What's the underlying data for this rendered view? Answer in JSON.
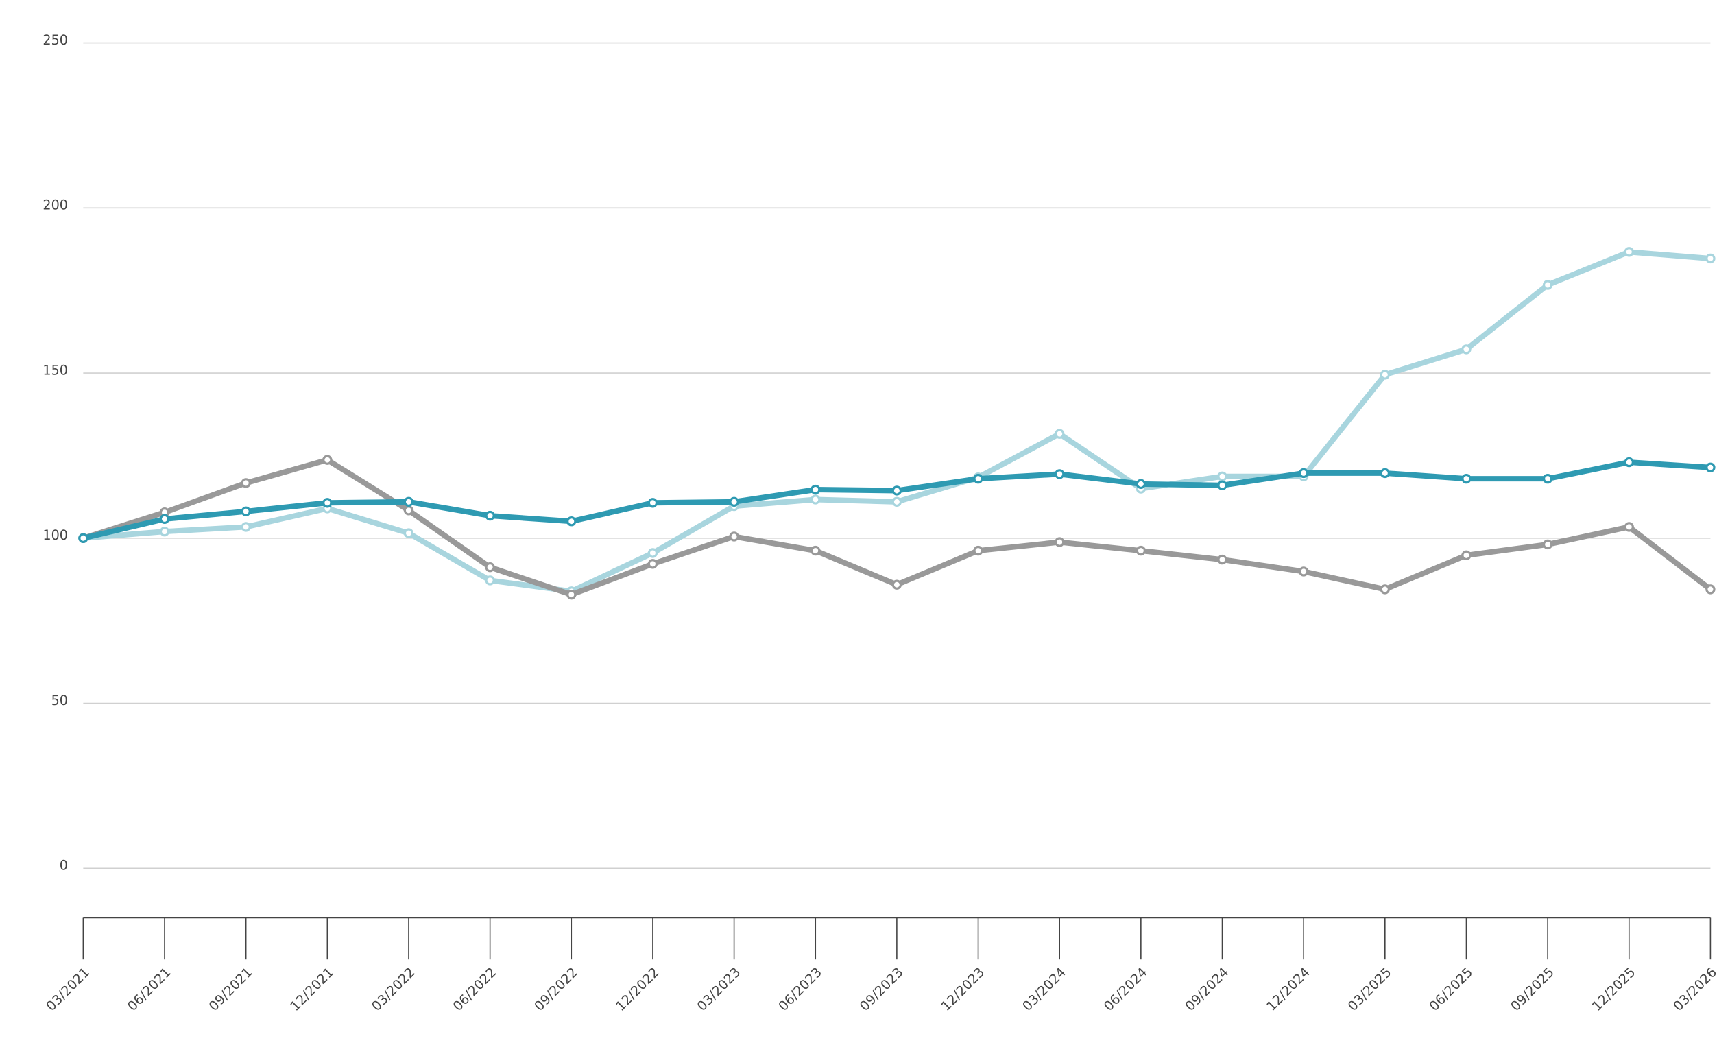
{
  "chart_data": {
    "type": "line",
    "categories": [
      "03/2021",
      "06/2021",
      "09/2021",
      "12/2021",
      "03/2022",
      "06/2022",
      "09/2022",
      "12/2022",
      "03/2023",
      "06/2023",
      "09/2023",
      "12/2023",
      "03/2024",
      "06/2024",
      "09/2024",
      "12/2024",
      "03/2025",
      "06/2025",
      "09/2025",
      "12/2025",
      "03/2026"
    ],
    "series": [
      {
        "color": "#a8d5de",
        "values": [
          100,
          102,
          103.4,
          109,
          101.5,
          87.2,
          83.9,
          95.5,
          109.7,
          111.7,
          111,
          118.4,
          131.6,
          115,
          118.7,
          118.7,
          149.5,
          157.2,
          176.7,
          186.7,
          184.7
        ]
      },
      {
        "color": "#999999",
        "values": [
          100,
          107.8,
          116.7,
          123.7,
          108.4,
          91.2,
          82.9,
          92.2,
          100.5,
          96.2,
          85.9,
          96.2,
          98.8,
          96.2,
          93.5,
          89.9,
          84.5,
          94.8,
          98.1,
          103.4,
          84.5
        ]
      },
      {
        "color": "#2e9ab2",
        "values": [
          100,
          105.8,
          108.1,
          110.7,
          111,
          106.8,
          105.1,
          110.7,
          111,
          114.7,
          114.4,
          118,
          119.4,
          116.4,
          116,
          119.7,
          119.7,
          118,
          118,
          123,
          121.4
        ]
      }
    ],
    "ylim": [
      -15,
      250
    ],
    "yticks": [
      0,
      50,
      100,
      150,
      200,
      250
    ],
    "grid": true
  }
}
